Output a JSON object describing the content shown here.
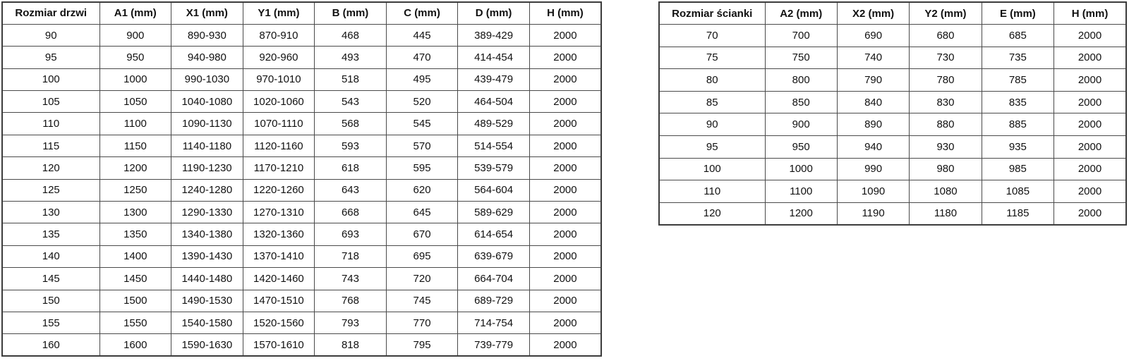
{
  "door_table": {
    "headers": [
      "Rozmiar drzwi",
      "A1 (mm)",
      "X1 (mm)",
      "Y1 (mm)",
      "B (mm)",
      "C (mm)",
      "D (mm)",
      "H (mm)"
    ],
    "rows": [
      [
        "90",
        "900",
        "890-930",
        "870-910",
        "468",
        "445",
        "389-429",
        "2000"
      ],
      [
        "95",
        "950",
        "940-980",
        "920-960",
        "493",
        "470",
        "414-454",
        "2000"
      ],
      [
        "100",
        "1000",
        "990-1030",
        "970-1010",
        "518",
        "495",
        "439-479",
        "2000"
      ],
      [
        "105",
        "1050",
        "1040-1080",
        "1020-1060",
        "543",
        "520",
        "464-504",
        "2000"
      ],
      [
        "110",
        "1100",
        "1090-1130",
        "1070-1110",
        "568",
        "545",
        "489-529",
        "2000"
      ],
      [
        "115",
        "1150",
        "1140-1180",
        "1120-1160",
        "593",
        "570",
        "514-554",
        "2000"
      ],
      [
        "120",
        "1200",
        "1190-1230",
        "1170-1210",
        "618",
        "595",
        "539-579",
        "2000"
      ],
      [
        "125",
        "1250",
        "1240-1280",
        "1220-1260",
        "643",
        "620",
        "564-604",
        "2000"
      ],
      [
        "130",
        "1300",
        "1290-1330",
        "1270-1310",
        "668",
        "645",
        "589-629",
        "2000"
      ],
      [
        "135",
        "1350",
        "1340-1380",
        "1320-1360",
        "693",
        "670",
        "614-654",
        "2000"
      ],
      [
        "140",
        "1400",
        "1390-1430",
        "1370-1410",
        "718",
        "695",
        "639-679",
        "2000"
      ],
      [
        "145",
        "1450",
        "1440-1480",
        "1420-1460",
        "743",
        "720",
        "664-704",
        "2000"
      ],
      [
        "150",
        "1500",
        "1490-1530",
        "1470-1510",
        "768",
        "745",
        "689-729",
        "2000"
      ],
      [
        "155",
        "1550",
        "1540-1580",
        "1520-1560",
        "793",
        "770",
        "714-754",
        "2000"
      ],
      [
        "160",
        "1600",
        "1590-1630",
        "1570-1610",
        "818",
        "795",
        "739-779",
        "2000"
      ]
    ]
  },
  "wall_table": {
    "headers": [
      "Rozmiar ścianki",
      "A2 (mm)",
      "X2 (mm)",
      "Y2 (mm)",
      "E (mm)",
      "H (mm)"
    ],
    "rows": [
      [
        "70",
        "700",
        "690",
        "680",
        "685",
        "2000"
      ],
      [
        "75",
        "750",
        "740",
        "730",
        "735",
        "2000"
      ],
      [
        "80",
        "800",
        "790",
        "780",
        "785",
        "2000"
      ],
      [
        "85",
        "850",
        "840",
        "830",
        "835",
        "2000"
      ],
      [
        "90",
        "900",
        "890",
        "880",
        "885",
        "2000"
      ],
      [
        "95",
        "950",
        "940",
        "930",
        "935",
        "2000"
      ],
      [
        "100",
        "1000",
        "990",
        "980",
        "985",
        "2000"
      ],
      [
        "110",
        "1100",
        "1090",
        "1080",
        "1085",
        "2000"
      ],
      [
        "120",
        "1200",
        "1190",
        "1180",
        "1185",
        "2000"
      ]
    ]
  },
  "colors": {
    "border_outer": "#3c3c3c",
    "border_inner": "#4a4a4a",
    "text": "#111111",
    "background": "#ffffff"
  }
}
